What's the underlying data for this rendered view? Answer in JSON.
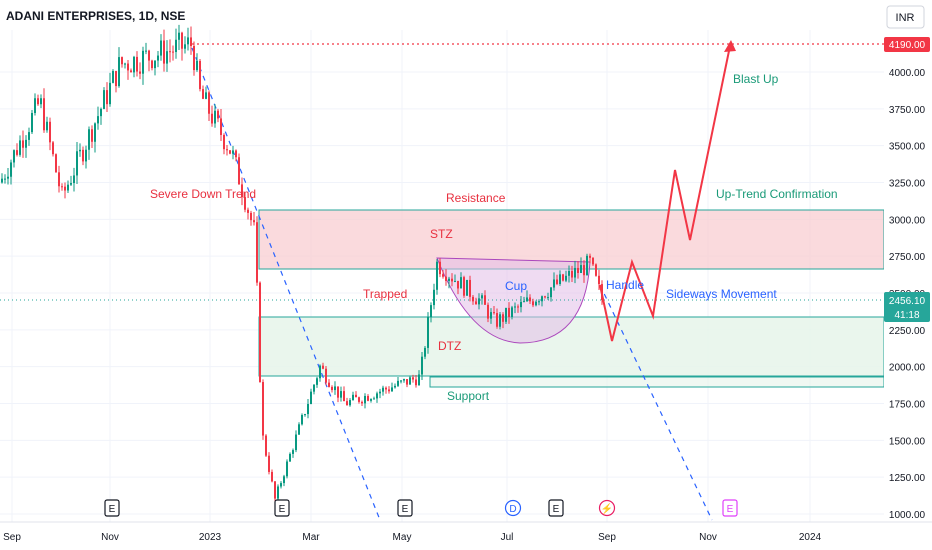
{
  "header": {
    "symbol_title": "ADANI ENTERPRISES, 1D, NSE",
    "currency_button": "INR"
  },
  "price_axis": {
    "ticks": [
      4000,
      3750,
      3500,
      3250,
      3000,
      2750,
      2500,
      2250,
      2000,
      1750,
      1500,
      1250,
      1000
    ],
    "tick_labels": [
      "4000.00",
      "3750.00",
      "3500.00",
      "3250.00",
      "3000.00",
      "2750.00",
      "2500.00",
      "2250.00",
      "2000.00",
      "1750.00",
      "1500.00",
      "1250.00",
      "1000.00"
    ],
    "high_label": "4190.00",
    "last_price_label": "2456.10",
    "countdown_label": "41:18"
  },
  "time_axis": {
    "labels": [
      "Sep",
      "Nov",
      "2023",
      "Mar",
      "May",
      "Jul",
      "Sep",
      "Nov",
      "2024"
    ]
  },
  "event_markers": [
    {
      "type": "earnings",
      "text": "E"
    },
    {
      "type": "earnings",
      "text": "E"
    },
    {
      "type": "earnings",
      "text": "E"
    },
    {
      "type": "dividend",
      "text": "D"
    },
    {
      "type": "earnings",
      "text": "E"
    },
    {
      "type": "split",
      "text": "⚡"
    },
    {
      "type": "earnings-upcoming",
      "text": "E"
    }
  ],
  "annotations": {
    "severe_down_trend": "Severe Down Trend",
    "resistance": "Resistance",
    "stz": "STZ",
    "trapped": "Trapped",
    "cup": "Cup",
    "handle": "Handle",
    "sideways": "Sideways Movement",
    "dtz": "DTZ",
    "support": "Support",
    "uptrend_confirmation": "Up-Trend Confirmation",
    "blast_up": "Blast Up"
  },
  "colors": {
    "up_candle": "#089981",
    "down_candle": "#f23645",
    "resistance_fill": "#f8cdd2",
    "support_fill": "#e6f4ea",
    "teal_text": "#1a9a78",
    "red_text": "#e8303f",
    "blue_text": "#2962ff",
    "projection": "#f23645",
    "trendline": "#2962ff",
    "cup_fill": "#e1bee7"
  },
  "chart_data": {
    "type": "candlestick",
    "title": "ADANI ENTERPRISES, 1D, NSE",
    "y_range": [
      1000,
      4190
    ],
    "zones": {
      "resistance": [
        2680,
        3070
      ],
      "support_band": [
        1950,
        2350
      ],
      "support_line": [
        1870,
        1940
      ]
    },
    "key_levels": {
      "high": 4190.0,
      "last": 2456.1
    },
    "approx_close_path": [
      {
        "t": "Sep 2022",
        "v": 3250
      },
      {
        "t": "Oct 2022",
        "v": 3800
      },
      {
        "t": "mid Oct 2022",
        "v": 3150
      },
      {
        "t": "Nov 2022",
        "v": 4050
      },
      {
        "t": "Dec 2022",
        "v": 4190
      },
      {
        "t": "late Dec 2022",
        "v": 3850
      },
      {
        "t": "mid Jan 2023",
        "v": 3450
      },
      {
        "t": "end Jan 2023",
        "v": 2900
      },
      {
        "t": "early Feb 2023",
        "v": 1550
      },
      {
        "t": "mid Feb 2023",
        "v": 1100
      },
      {
        "t": "early Mar 2023",
        "v": 2000
      },
      {
        "t": "late Mar 2023",
        "v": 1750
      },
      {
        "t": "May 2023",
        "v": 1930
      },
      {
        "t": "mid May 2023",
        "v": 2700
      },
      {
        "t": "Jun 2023",
        "v": 2450
      },
      {
        "t": "late Jun 2023",
        "v": 2300
      },
      {
        "t": "Aug 2023",
        "v": 2700
      },
      {
        "t": "end Aug 2023",
        "v": 2456
      }
    ],
    "projection_path": [
      {
        "t": "Sep 2023",
        "v": 2200
      },
      {
        "t": "Sep 2023",
        "v": 2730
      },
      {
        "t": "Oct 2023",
        "v": 2350
      },
      {
        "t": "Oct 2023",
        "v": 3350
      },
      {
        "t": "Oct 2023",
        "v": 2860
      },
      {
        "t": "Nov 2023",
        "v": 4190
      }
    ]
  }
}
